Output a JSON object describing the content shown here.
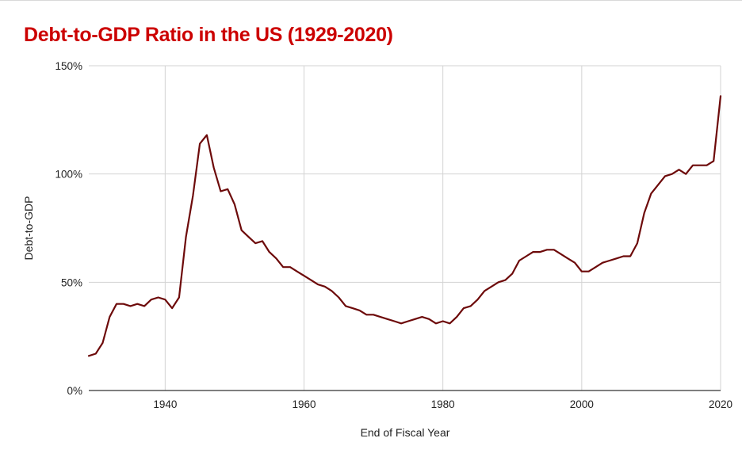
{
  "chart_data": {
    "type": "line",
    "title": "Debt-to-GDP Ratio in the US (1929-2020)",
    "xlabel": "End of Fiscal Year",
    "ylabel": "Debt-to-GDP",
    "xlim": [
      1929,
      2020
    ],
    "ylim": [
      0,
      150
    ],
    "x_ticks": [
      1940,
      1960,
      1980,
      2000,
      2020
    ],
    "y_ticks": [
      0,
      50,
      100,
      150
    ],
    "y_tick_labels": [
      "0%",
      "50%",
      "100%",
      "150%"
    ],
    "grid": true,
    "legend": "none",
    "colors": {
      "title": "#cc0000",
      "line": "#6d0a0a",
      "grid": "#d3d3d3",
      "axis": "#333333"
    },
    "series": [
      {
        "x": [
          1929,
          1930,
          1931,
          1932,
          1933,
          1934,
          1935,
          1936,
          1937,
          1938,
          1939,
          1940,
          1941,
          1942,
          1943,
          1944,
          1945,
          1946,
          1947,
          1948,
          1949,
          1950,
          1951,
          1952,
          1953,
          1954,
          1955,
          1956,
          1957,
          1958,
          1959,
          1960,
          1961,
          1962,
          1963,
          1964,
          1965,
          1966,
          1967,
          1968,
          1969,
          1970,
          1971,
          1972,
          1973,
          1974,
          1975,
          1976,
          1977,
          1978,
          1979,
          1980,
          1981,
          1982,
          1983,
          1984,
          1985,
          1986,
          1987,
          1988,
          1989,
          1990,
          1991,
          1992,
          1993,
          1994,
          1995,
          1996,
          1997,
          1998,
          1999,
          2000,
          2001,
          2002,
          2003,
          2004,
          2005,
          2006,
          2007,
          2008,
          2009,
          2010,
          2011,
          2012,
          2013,
          2014,
          2015,
          2016,
          2017,
          2018,
          2019,
          2020
        ],
        "values": [
          16,
          17,
          22,
          34,
          40,
          40,
          39,
          40,
          39,
          42,
          43,
          42,
          38,
          43,
          71,
          90,
          114,
          118,
          103,
          92,
          93,
          86,
          74,
          71,
          68,
          69,
          64,
          61,
          57,
          57,
          55,
          53,
          51,
          49,
          48,
          46,
          43,
          39,
          38,
          37,
          35,
          35,
          34,
          33,
          32,
          31,
          32,
          33,
          34,
          33,
          31,
          32,
          31,
          34,
          38,
          39,
          42,
          46,
          48,
          50,
          51,
          54,
          60,
          62,
          64,
          64,
          65,
          65,
          63,
          61,
          59,
          55,
          55,
          57,
          59,
          60,
          61,
          62,
          62,
          68,
          82,
          91,
          95,
          99,
          100,
          102,
          100,
          104,
          104,
          104,
          106,
          136
        ]
      }
    ]
  }
}
